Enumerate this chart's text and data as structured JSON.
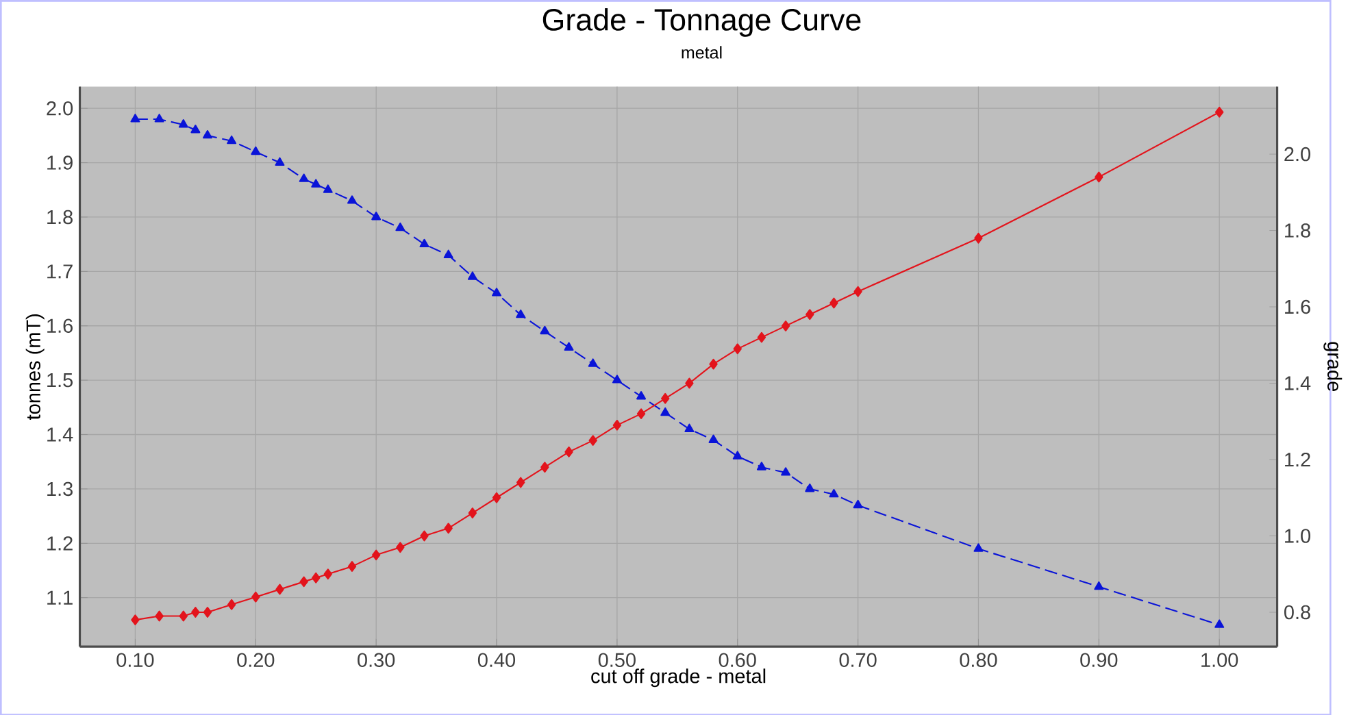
{
  "chart_data": {
    "type": "line",
    "title": "Grade - Tonnage Curve",
    "subtitle": "metal",
    "xlabel": "cut off grade - metal",
    "ylabel": "tonnes (mT)",
    "y2label": "grade",
    "x": [
      0.1,
      0.12,
      0.14,
      0.15,
      0.16,
      0.18,
      0.2,
      0.22,
      0.24,
      0.25,
      0.26,
      0.28,
      0.3,
      0.32,
      0.34,
      0.36,
      0.38,
      0.4,
      0.42,
      0.44,
      0.46,
      0.48,
      0.5,
      0.52,
      0.54,
      0.56,
      0.58,
      0.6,
      0.62,
      0.64,
      0.66,
      0.68,
      0.7,
      0.8,
      0.9,
      1.0
    ],
    "series": [
      {
        "color": "#e3141c",
        "axis": "y2",
        "marker": "diamond",
        "line_style": "solid",
        "values": [
          0.78,
          0.79,
          0.79,
          0.8,
          0.8,
          0.82,
          0.84,
          0.86,
          0.88,
          0.89,
          0.9,
          0.92,
          0.95,
          0.97,
          1.0,
          1.02,
          1.06,
          1.1,
          1.14,
          1.18,
          1.22,
          1.25,
          1.29,
          1.32,
          1.36,
          1.4,
          1.45,
          1.49,
          1.52,
          1.55,
          1.58,
          1.61,
          1.64,
          1.78,
          1.94,
          2.11
        ]
      },
      {
        "color": "#0a14d8",
        "marker": "triangle",
        "line_style": "dashed",
        "values": [
          1.98,
          1.98,
          1.97,
          1.96,
          1.95,
          1.94,
          1.92,
          1.9,
          1.87,
          1.86,
          1.85,
          1.83,
          1.8,
          1.78,
          1.75,
          1.73,
          1.69,
          1.66,
          1.62,
          1.59,
          1.56,
          1.53,
          1.5,
          1.47,
          1.44,
          1.41,
          1.39,
          1.36,
          1.34,
          1.33,
          1.3,
          1.29,
          1.27,
          1.19,
          1.12,
          1.05
        ]
      }
    ],
    "xlim": [
      0.054,
      1.048
    ],
    "ylim": [
      1.01,
      2.04
    ],
    "y2lim": [
      0.71,
      2.177
    ],
    "xticks": [
      {
        "value": 0.1,
        "label": "0.10"
      },
      {
        "value": 0.2,
        "label": "0.20"
      },
      {
        "value": 0.3,
        "label": "0.30"
      },
      {
        "value": 0.4,
        "label": "0.40"
      },
      {
        "value": 0.5,
        "label": "0.50"
      },
      {
        "value": 0.6,
        "label": "0.60"
      },
      {
        "value": 0.7,
        "label": "0.70"
      },
      {
        "value": 0.8,
        "label": "0.80"
      },
      {
        "value": 0.9,
        "label": "0.90"
      },
      {
        "value": 1.0,
        "label": "1.00"
      }
    ],
    "yticks": [
      1.1,
      1.2,
      1.3,
      1.4,
      1.5,
      1.6,
      1.7,
      1.8,
      1.9,
      {
        "value": 2.0,
        "label": "2.0"
      }
    ],
    "y2ticks": [
      0.8,
      {
        "value": 1.0,
        "label": "1.0"
      },
      1.2,
      1.4,
      1.6,
      1.8,
      {
        "value": 2.0,
        "label": "2.0"
      }
    ],
    "grid": true
  }
}
